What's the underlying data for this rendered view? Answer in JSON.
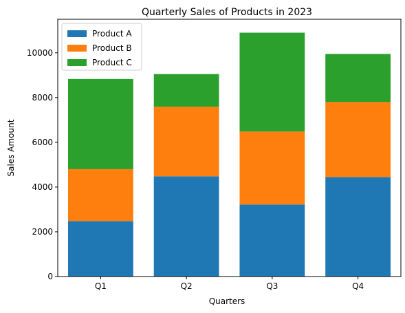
{
  "chart_data": {
    "type": "bar",
    "stacked": true,
    "title": "Quarterly Sales of Products in 2023",
    "xlabel": "Quarters",
    "ylabel": "Sales Amount",
    "categories": [
      "Q1",
      "Q2",
      "Q3",
      "Q4"
    ],
    "ylim": [
      0,
      11500
    ],
    "yticks": [
      0,
      2000,
      4000,
      6000,
      8000,
      10000
    ],
    "grid": false,
    "legend_position": "top-left",
    "series": [
      {
        "name": "Product A",
        "color": "#1f77b4",
        "values": [
          2480,
          4480,
          3220,
          4450
        ]
      },
      {
        "name": "Product B",
        "color": "#ff7f0e",
        "values": [
          2320,
          3110,
          3260,
          3350
        ]
      },
      {
        "name": "Product C",
        "color": "#2ca02c",
        "values": [
          4030,
          1460,
          4420,
          2150
        ]
      }
    ]
  }
}
